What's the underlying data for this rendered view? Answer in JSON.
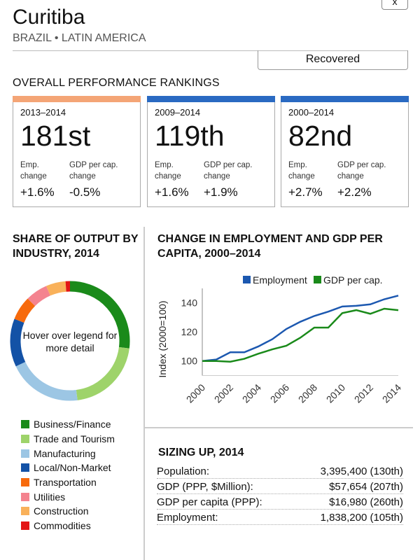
{
  "close_label": "x",
  "title": "Curitiba",
  "subtitle": "BRAZIL • LATIN AMERICA",
  "status": "Recovered",
  "rankings": {
    "title": "OVERALL PERFORMANCE RANKINGS",
    "cards": [
      {
        "period": "2013–2014",
        "rank": "181st",
        "emp_label": "Emp. change",
        "gdp_label": "GDP per cap. change",
        "emp": "+1.6%",
        "gdp": "-0.5%",
        "color": "#f4a576"
      },
      {
        "period": "2009–2014",
        "rank": "119th",
        "emp_label": "Emp. change",
        "gdp_label": "GDP per cap. change",
        "emp": "+1.6%",
        "gdp": "+1.9%",
        "color": "#2a6ac2"
      },
      {
        "period": "2000–2014",
        "rank": "82nd",
        "emp_label": "Emp. change",
        "gdp_label": "GDP per cap. change",
        "emp": "+2.7%",
        "gdp": "+2.2%",
        "color": "#2a6ac2"
      }
    ]
  },
  "share": {
    "title": "SHARE OF OUTPUT BY INDUSTRY, 2014",
    "center_text": "Hover over legend for more detail",
    "items": [
      {
        "label": "Business/Finance",
        "color": "#1a8a1a",
        "share": 27
      },
      {
        "label": "Trade and Tourism",
        "color": "#9ed36a",
        "share": 21
      },
      {
        "label": "Manufacturing",
        "color": "#9cc6e4",
        "share": 20
      },
      {
        "label": "Local/Non-Market",
        "color": "#1352a6",
        "share": 13
      },
      {
        "label": "Transportation",
        "color": "#f76a0c",
        "share": 6.5
      },
      {
        "label": "Utilities",
        "color": "#f4838f",
        "share": 6
      },
      {
        "label": "Construction",
        "color": "#f9b15a",
        "share": 5.3
      },
      {
        "label": "Commodities",
        "color": "#e31414",
        "share": 1.2
      }
    ]
  },
  "chart_data": {
    "type": "line",
    "title": "CHANGE IN EMPLOYMENT AND GDP PER CAPITA, 2000–2014",
    "xlabel": "",
    "ylabel": "Index (2000=100)",
    "x": [
      2000,
      2001,
      2002,
      2003,
      2004,
      2005,
      2006,
      2007,
      2008,
      2009,
      2010,
      2011,
      2012,
      2013,
      2014
    ],
    "xticks": [
      "2000",
      "2002",
      "2004",
      "2006",
      "2008",
      "2010",
      "2012",
      "2014"
    ],
    "yticks": [
      "100",
      "120",
      "140"
    ],
    "ylim": [
      90,
      150
    ],
    "legend": "top-right",
    "series": [
      {
        "name": "Employment",
        "color": "#1c58b0",
        "values": [
          100,
          101,
          106,
          106,
          110,
          115,
          122,
          127,
          131,
          134,
          137.5,
          138,
          139,
          142.5,
          145
        ]
      },
      {
        "name": "GDP per cap.",
        "color": "#1a8a1a",
        "values": [
          100,
          100,
          99.5,
          101.5,
          105,
          108,
          110.5,
          116,
          123,
          123,
          133,
          135,
          132.5,
          136,
          135
        ]
      }
    ]
  },
  "sizing": {
    "title": "SIZING UP, 2014",
    "rows": [
      {
        "label": "Population:",
        "value": "3,395,400 (130th)"
      },
      {
        "label": "GDP (PPP, $Million):",
        "value": "$57,654 (207th)"
      },
      {
        "label": "GDP per capita (PPP):",
        "value": "$16,980 (260th)"
      },
      {
        "label": "Employment:",
        "value": "1,838,200 (105th)"
      }
    ]
  }
}
